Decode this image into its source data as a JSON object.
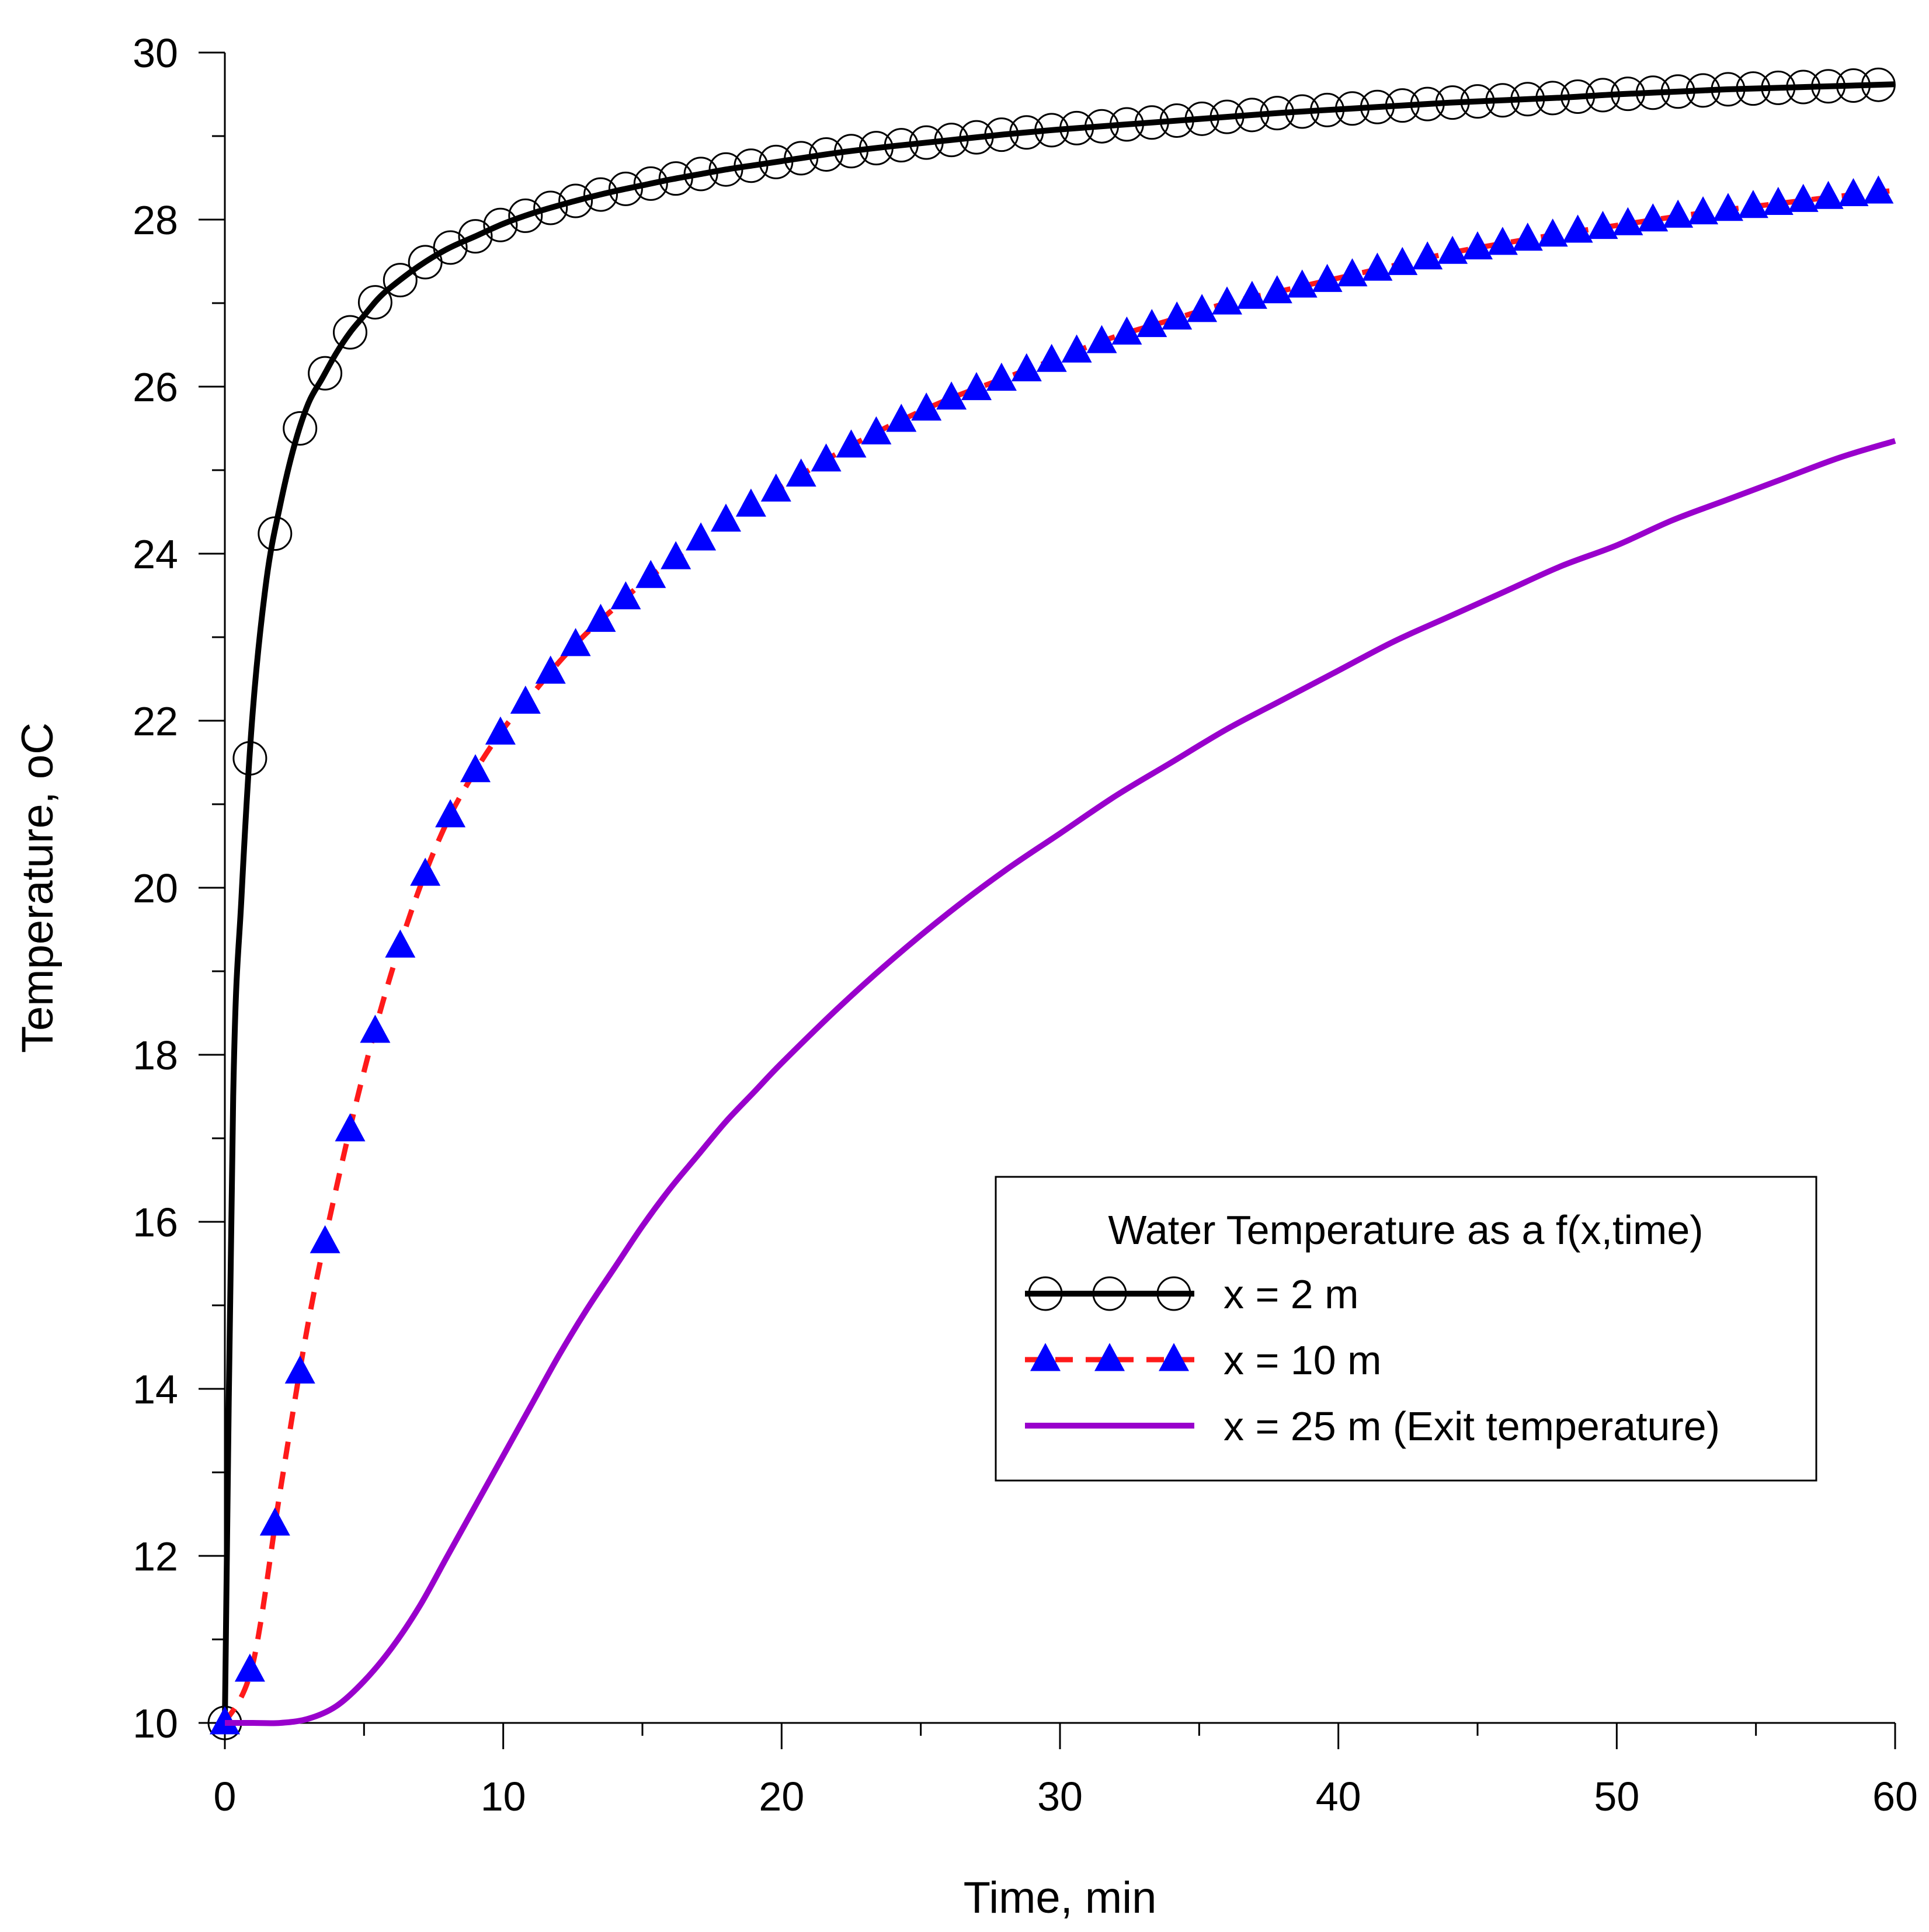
{
  "chart_data": {
    "type": "line",
    "title": "",
    "xlabel": "Time, min",
    "ylabel": "Temperature, ",
    "ylabel_unit": "oC",
    "xlim": [
      0,
      60
    ],
    "ylim": [
      10,
      30
    ],
    "x_ticks": [
      0,
      10,
      20,
      30,
      40,
      50,
      60
    ],
    "y_ticks": [
      10,
      12,
      14,
      16,
      18,
      20,
      22,
      24,
      26,
      28,
      30
    ],
    "grid": false,
    "legend": {
      "title": "Water Temperature as a f(x,time)",
      "position": "lower-right"
    },
    "series": [
      {
        "name": "x = 2 m",
        "color": "#000000",
        "line_style": "solid",
        "marker": "open-circle",
        "x": [
          0,
          0.3,
          0.6,
          1,
          1.5,
          2,
          2.5,
          3,
          3.5,
          4,
          4.5,
          5,
          5.5,
          6,
          7,
          8,
          9,
          10,
          11,
          12,
          13,
          14,
          15,
          16,
          17,
          18,
          19,
          20,
          22,
          24,
          26,
          28,
          30,
          32,
          34,
          36,
          38,
          40,
          42,
          44,
          46,
          48,
          50,
          52,
          54,
          56,
          58,
          60
        ],
        "values": [
          10,
          17.5,
          19.9,
          22.1,
          23.7,
          24.6,
          25.3,
          25.8,
          26.1,
          26.4,
          26.65,
          26.85,
          27.05,
          27.2,
          27.45,
          27.65,
          27.8,
          27.95,
          28.07,
          28.17,
          28.26,
          28.34,
          28.41,
          28.48,
          28.54,
          28.6,
          28.65,
          28.7,
          28.8,
          28.88,
          28.95,
          29.02,
          29.08,
          29.13,
          29.18,
          29.23,
          29.28,
          29.32,
          29.36,
          29.4,
          29.43,
          29.46,
          29.5,
          29.53,
          29.56,
          29.58,
          29.6,
          29.62
        ]
      },
      {
        "name": "x = 10 m",
        "color": "#ff1a1a",
        "marker_color": "#0000ff",
        "line_style": "dashed",
        "marker": "filled-triangle",
        "x": [
          0,
          1,
          2,
          3,
          4,
          5,
          6,
          7,
          8,
          9,
          10,
          11,
          12,
          13,
          14,
          15,
          16,
          17,
          18,
          19,
          20,
          22,
          24,
          26,
          28,
          30,
          32,
          34,
          36,
          38,
          40,
          42,
          44,
          46,
          48,
          50,
          52,
          54,
          56,
          58,
          60
        ],
        "values": [
          10,
          10.7,
          12.8,
          14.8,
          16.4,
          17.8,
          19.0,
          20.0,
          20.8,
          21.4,
          21.9,
          22.3,
          22.7,
          23.05,
          23.35,
          23.65,
          23.9,
          24.15,
          24.4,
          24.6,
          24.8,
          25.2,
          25.55,
          25.85,
          26.1,
          26.35,
          26.6,
          26.8,
          27.0,
          27.15,
          27.3,
          27.45,
          27.6,
          27.72,
          27.83,
          27.93,
          28.03,
          28.12,
          28.2,
          28.28,
          28.35
        ]
      },
      {
        "name": "x = 25 m (Exit temperature)",
        "color": "#9900cc",
        "line_style": "solid",
        "marker": "none",
        "x": [
          0,
          1,
          2,
          3,
          4,
          5,
          6,
          7,
          8,
          9,
          10,
          11,
          12,
          13,
          14,
          15,
          16,
          17,
          18,
          19,
          20,
          22,
          24,
          26,
          28,
          30,
          32,
          34,
          36,
          38,
          40,
          42,
          44,
          46,
          48,
          50,
          52,
          54,
          56,
          58,
          60
        ],
        "values": [
          10,
          10.0,
          10.0,
          10.05,
          10.2,
          10.5,
          10.9,
          11.4,
          12.0,
          12.6,
          13.2,
          13.8,
          14.4,
          14.95,
          15.45,
          15.95,
          16.4,
          16.8,
          17.2,
          17.55,
          17.9,
          18.55,
          19.15,
          19.7,
          20.2,
          20.65,
          21.1,
          21.5,
          21.9,
          22.25,
          22.6,
          22.95,
          23.25,
          23.55,
          23.85,
          24.1,
          24.4,
          24.65,
          24.9,
          25.15,
          25.35
        ]
      }
    ]
  }
}
